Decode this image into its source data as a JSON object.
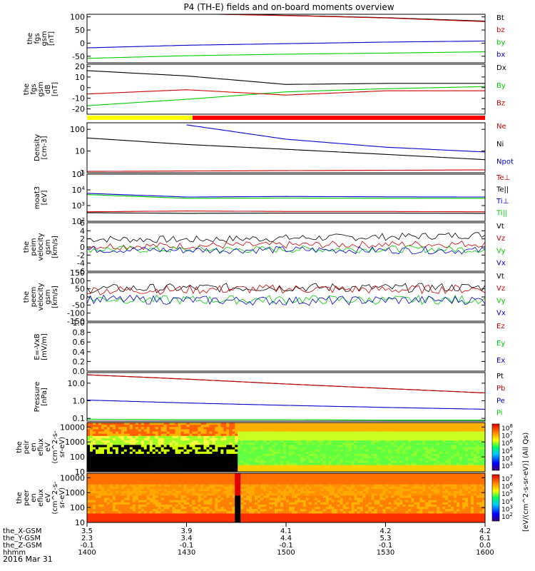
{
  "title": "P4 (TH-E) fields and on-board moments overview",
  "date_label": "2016 Mar 31",
  "time_axis": {
    "ticks": [
      "1400",
      "1430",
      "1500",
      "1530",
      "1600"
    ],
    "rows": [
      {
        "label": "the_X-GSM",
        "values": [
          "3.5",
          "3.9",
          "4.1",
          "4.2",
          "4.2"
        ]
      },
      {
        "label": "the_Y-GSM",
        "values": [
          "2.3",
          "3.4",
          "4.4",
          "5.3",
          "6.1"
        ]
      },
      {
        "label": "the_Z-GSM",
        "values": [
          "-0.1",
          "-0.1",
          "-0.1",
          "-0.1",
          "0.0"
        ]
      },
      {
        "label": "hhmm",
        "values": [
          "1400",
          "1430",
          "1500",
          "1530",
          "1600"
        ]
      }
    ]
  },
  "chart_data": [
    {
      "type": "line",
      "scale": "linear",
      "ylabel": [
        "the",
        "fgs",
        "gsm",
        "[nT]"
      ],
      "ylim": [
        -75,
        110
      ],
      "yticks": [
        "100",
        "50",
        "0",
        "-50"
      ],
      "ytick_values": [
        100,
        50,
        0,
        -50
      ],
      "x": [
        "14:00",
        "14:30",
        "15:00",
        "15:30",
        "16:00"
      ],
      "legend": [
        "Bt",
        "bz",
        "by",
        "bx"
      ],
      "series": [
        {
          "name": "Bt",
          "color": "#000000",
          "values": [
            115,
            113,
            106,
            97,
            84
          ]
        },
        {
          "name": "bz",
          "color": "#cc0000",
          "values": [
            114,
            112,
            105,
            96,
            82
          ]
        },
        {
          "name": "by",
          "color": "#00cc00",
          "values": [
            -58,
            -48,
            -42,
            -38,
            -33
          ]
        },
        {
          "name": "bx",
          "color": "#0000cc",
          "values": [
            -18,
            -8,
            -2,
            4,
            8
          ]
        }
      ]
    },
    {
      "type": "line",
      "scale": "linear",
      "ylabel": [
        "the",
        "fgs",
        "gsm",
        "dB",
        "[nT]"
      ],
      "ylim": [
        -25,
        22
      ],
      "yticks": [
        "20",
        "10",
        "0",
        "-10",
        "-20"
      ],
      "ytick_values": [
        20,
        10,
        0,
        -10,
        -20
      ],
      "x": [
        "14:00",
        "14:30",
        "15:00",
        "15:30",
        "16:00"
      ],
      "legend": [
        "Dx",
        "By",
        "Bz"
      ],
      "series": [
        {
          "name": "Dx",
          "color": "#000000",
          "values": [
            16,
            11,
            3,
            4,
            4
          ]
        },
        {
          "name": "By",
          "color": "#00cc00",
          "values": [
            -17,
            -11,
            -4,
            -1,
            1
          ]
        },
        {
          "name": "Bz",
          "color": "#cc0000",
          "values": [
            -6,
            -2,
            -7,
            -3,
            -3
          ]
        }
      ]
    },
    {
      "type": "line",
      "scale": "log",
      "ylabel": [
        "Density",
        "[cm-3]"
      ],
      "ylim": [
        1,
        200
      ],
      "yticks": [
        "100",
        "10",
        "1"
      ],
      "ytick_values": [
        100,
        10,
        1
      ],
      "x": [
        "14:00",
        "14:30",
        "15:00",
        "15:30",
        "16:00"
      ],
      "legend": [
        "Ne",
        "Ni",
        "Npot"
      ],
      "series": [
        {
          "name": "Ne",
          "color": "#cc0000",
          "values": [
            1.15,
            1.2,
            1.25,
            1.3,
            1.35
          ]
        },
        {
          "name": "Ni",
          "color": "#000000",
          "values": [
            40,
            20,
            12,
            7,
            4
          ]
        },
        {
          "name": "Npot",
          "color": "#0000cc",
          "values": [
            null,
            160,
            35,
            15,
            9
          ]
        }
      ]
    },
    {
      "type": "line",
      "scale": "log",
      "ylabel": [
        "moat3",
        "[eV]"
      ],
      "ylim": [
        100,
        100000
      ],
      "yticks": [
        "10^5",
        "10^4",
        "10^3",
        "10^2"
      ],
      "ytick_values": [
        100000,
        10000,
        1000,
        100
      ],
      "x": [
        "14:00",
        "14:30",
        "15:00",
        "15:30",
        "16:00"
      ],
      "legend": [
        "Te⊥",
        "Te||",
        "Ti⊥",
        "Ti||"
      ],
      "series": [
        {
          "name": "Te⊥",
          "color": "#cc0000",
          "values": [
            400,
            450,
            420,
            420,
            400
          ]
        },
        {
          "name": "Te||",
          "color": "#000000",
          "values": [
            350,
            320,
            330,
            330,
            320
          ]
        },
        {
          "name": "Ti⊥",
          "color": "#0000cc",
          "values": [
            6000,
            3500,
            3800,
            3600,
            3500
          ]
        },
        {
          "name": "Ti||",
          "color": "#00cc00",
          "values": [
            5000,
            2900,
            3000,
            2900,
            2900
          ]
        }
      ]
    },
    {
      "type": "line",
      "scale": "linear",
      "ylabel": [
        "the",
        "peim",
        "velocity",
        "gsm",
        "[km/s]"
      ],
      "ylim": [
        -6,
        6
      ],
      "yticks": [
        "6",
        "4",
        "2",
        "0",
        "-2",
        "-4",
        "-6"
      ],
      "ytick_values": [
        6,
        4,
        2,
        0,
        -2,
        -4,
        -6
      ],
      "x": [
        "14:00",
        "14:30",
        "15:00",
        "15:30",
        "16:00"
      ],
      "legend": [
        "Vt",
        "Vz",
        "Vy",
        "Vx"
      ],
      "series": [
        {
          "name": "Vt",
          "color": "#000000",
          "values": [
            2,
            1.8,
            2.2,
            2.5,
            3
          ]
        },
        {
          "name": "Vz",
          "color": "#cc0000",
          "values": [
            0.2,
            0.3,
            0.5,
            0.6,
            0.8
          ]
        },
        {
          "name": "Vy",
          "color": "#00cc00",
          "values": [
            -0.5,
            -0.7,
            -0.6,
            -0.5,
            -0.6
          ]
        },
        {
          "name": "Vx",
          "color": "#0000cc",
          "values": [
            -0.6,
            -0.8,
            -0.7,
            -0.8,
            -0.9
          ]
        }
      ]
    },
    {
      "type": "line",
      "scale": "linear",
      "ylabel": [
        "the",
        "peem",
        "velocity",
        "gsm",
        "[km/s]"
      ],
      "ylim": [
        -150,
        150
      ],
      "yticks": [
        "150",
        "100",
        "50",
        "0",
        "-50",
        "-100",
        "-150"
      ],
      "ytick_values": [
        150,
        100,
        50,
        0,
        -50,
        -100,
        -150
      ],
      "x": [
        "14:00",
        "14:30",
        "15:00",
        "15:30",
        "16:00"
      ],
      "legend": [
        "Vt",
        "Vz",
        "Vy",
        "Vx"
      ],
      "series": [
        {
          "name": "Vt",
          "color": "#000000",
          "values": [
            50,
            55,
            60,
            55,
            60
          ]
        },
        {
          "name": "Vz",
          "color": "#cc0000",
          "values": [
            40,
            45,
            50,
            45,
            50
          ]
        },
        {
          "name": "Vy",
          "color": "#00cc00",
          "values": [
            -10,
            -20,
            -15,
            -20,
            -15
          ]
        },
        {
          "name": "Vx",
          "color": "#0000cc",
          "values": [
            -15,
            -20,
            -25,
            -20,
            -20
          ]
        }
      ]
    },
    {
      "type": "line",
      "scale": "linear",
      "ylabel": [
        "E=-VxB",
        "[mV/m]"
      ],
      "ylim": [
        0,
        1
      ],
      "yticks": [
        "1.0",
        "0.8",
        "0.6",
        "0.4",
        "0.2",
        "0.0"
      ],
      "ytick_values": [
        1.0,
        0.8,
        0.6,
        0.4,
        0.2,
        0.0
      ],
      "x": [
        "14:00",
        "14:30",
        "15:00",
        "15:30",
        "16:00"
      ],
      "legend": [
        "Ez",
        "Ey",
        "Ex"
      ],
      "series": []
    },
    {
      "type": "line",
      "scale": "log",
      "ylabel": [
        "Pressure",
        "[nPa]"
      ],
      "ylim": [
        0.07,
        40
      ],
      "yticks": [
        "10.0",
        "1.0",
        "0.1"
      ],
      "ytick_values": [
        10,
        1,
        0.1
      ],
      "x": [
        "14:00",
        "14:30",
        "15:00",
        "15:30",
        "16:00"
      ],
      "legend": [
        "Pt",
        "Pb",
        "Pe",
        "Pi"
      ],
      "series": [
        {
          "name": "Pt",
          "color": "#000000",
          "values": [
            30,
            17,
            9,
            5,
            2.8
          ]
        },
        {
          "name": "Pb",
          "color": "#cc0000",
          "values": [
            30,
            17,
            9,
            5,
            2.8
          ]
        },
        {
          "name": "Pe",
          "color": "#0000cc",
          "values": [
            1.1,
            0.75,
            0.55,
            0.42,
            0.33
          ]
        },
        {
          "name": "Pi",
          "color": "#00cc00",
          "values": [
            0.09,
            0.085,
            0.085,
            0.08,
            0.08
          ]
        }
      ]
    },
    {
      "type": "heatmap",
      "scale": "log",
      "ylabel": [
        "the",
        "peir",
        "en",
        "eflux",
        "eV",
        "(cm^2-s-",
        "sr-eV)"
      ],
      "ylim": [
        10,
        20000
      ],
      "yticks": [
        "10000",
        "1000",
        "100",
        "10"
      ],
      "ytick_values": [
        10000,
        1000,
        100,
        10
      ],
      "x": [
        "14:00",
        "14:30",
        "15:00",
        "15:30",
        "16:00"
      ],
      "colorbar_ticks": [
        "10^8",
        "10^7",
        "10^6",
        "10^5",
        "10^4",
        "10^3"
      ]
    },
    {
      "type": "heatmap",
      "scale": "log",
      "ylabel": [
        "the",
        "peer",
        "en",
        "eflux",
        "eV",
        "(cm^2-s-",
        "sr-eV)"
      ],
      "ylim": [
        10,
        20000
      ],
      "yticks": [
        "10000",
        "1000",
        "100",
        "10"
      ],
      "ytick_values": [
        10000,
        1000,
        100,
        10
      ],
      "x": [
        "14:00",
        "14:30",
        "15:00",
        "15:30",
        "16:00"
      ],
      "colorbar_ticks": [
        "10^7",
        "10^6",
        "10^5",
        "10^4",
        "10^3",
        "10^2"
      ]
    }
  ],
  "colorbar_label": "[eV/(cm^2-s-sr-eV)] (All Qs)",
  "colors": {
    "mode_bar_slow": "#ffff00",
    "mode_bar_fast": "#ff0000"
  }
}
